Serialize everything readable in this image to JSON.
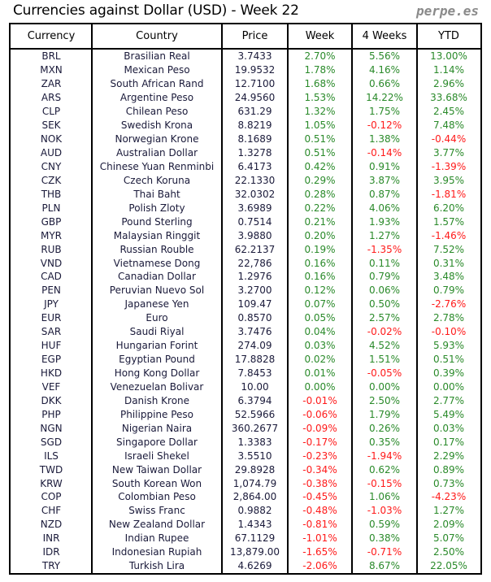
{
  "title": "Currencies against Dollar (USD) - Week 22",
  "brand": "perpe.es",
  "colors": {
    "positive": "#2a8a2a",
    "negative": "#ff1a1a"
  },
  "headers": [
    "Currency",
    "Country",
    "Price",
    "Week",
    "4 Weeks",
    "YTD"
  ],
  "rows": [
    [
      "BRL",
      "Brasilian Real",
      "3.7433",
      "2.70%",
      "5.56%",
      "13.00%"
    ],
    [
      "MXN",
      "Mexican Peso",
      "19.9532",
      "1.78%",
      "4.16%",
      "1.14%"
    ],
    [
      "ZAR",
      "South African Rand",
      "12.7100",
      "1.68%",
      "0.66%",
      "2.96%"
    ],
    [
      "ARS",
      "Argentine Peso",
      "24.9560",
      "1.53%",
      "14.22%",
      "33.68%"
    ],
    [
      "CLP",
      "Chilean Peso",
      "631.29",
      "1.32%",
      "1.75%",
      "2.45%"
    ],
    [
      "SEK",
      "Swedish Krona",
      "8.8219",
      "1.05%",
      "-0.12%",
      "7.48%"
    ],
    [
      "NOK",
      "Norwegian Krone",
      "8.1689",
      "0.51%",
      "1.38%",
      "-0.44%"
    ],
    [
      "AUD",
      "Australian Dollar",
      "1.3278",
      "0.51%",
      "-0.14%",
      "3.77%"
    ],
    [
      "CNY",
      "Chinese Yuan Renminbi",
      "6.4173",
      "0.42%",
      "0.91%",
      "-1.39%"
    ],
    [
      "CZK",
      "Czech Koruna",
      "22.1330",
      "0.29%",
      "3.87%",
      "3.95%"
    ],
    [
      "THB",
      "Thai Baht",
      "32.0302",
      "0.28%",
      "0.87%",
      "-1.81%"
    ],
    [
      "PLN",
      "Polish Zloty",
      "3.6989",
      "0.22%",
      "4.06%",
      "6.20%"
    ],
    [
      "GBP",
      "Pound Sterling",
      "0.7514",
      "0.21%",
      "1.93%",
      "1.57%"
    ],
    [
      "MYR",
      "Malaysian Ringgit",
      "3.9880",
      "0.20%",
      "1.27%",
      "-1.46%"
    ],
    [
      "RUB",
      "Russian Rouble",
      "62.2137",
      "0.19%",
      "-1.35%",
      "7.52%"
    ],
    [
      "VND",
      "Vietnamese Dong",
      "22,786",
      "0.16%",
      "0.11%",
      "0.31%"
    ],
    [
      "CAD",
      "Canadian Dollar",
      "1.2976",
      "0.16%",
      "0.79%",
      "3.48%"
    ],
    [
      "PEN",
      "Peruvian Nuevo Sol",
      "3.2700",
      "0.12%",
      "0.06%",
      "0.79%"
    ],
    [
      "JPY",
      "Japanese Yen",
      "109.47",
      "0.07%",
      "0.50%",
      "-2.76%"
    ],
    [
      "EUR",
      "Euro",
      "0.8570",
      "0.05%",
      "2.57%",
      "2.78%"
    ],
    [
      "SAR",
      "Saudi Riyal",
      "3.7476",
      "0.04%",
      "-0.02%",
      "-0.10%"
    ],
    [
      "HUF",
      "Hungarian Forint",
      "274.09",
      "0.03%",
      "4.52%",
      "5.93%"
    ],
    [
      "EGP",
      "Egyptian Pound",
      "17.8828",
      "0.02%",
      "1.51%",
      "0.51%"
    ],
    [
      "HKD",
      "Hong Kong Dollar",
      "7.8453",
      "0.01%",
      "-0.05%",
      "0.39%"
    ],
    [
      "VEF",
      "Venezuelan Bolivar",
      "10.00",
      "0.00%",
      "0.00%",
      "0.00%"
    ],
    [
      "DKK",
      "Danish Krone",
      "6.3794",
      "-0.01%",
      "2.50%",
      "2.77%"
    ],
    [
      "PHP",
      "Philippine Peso",
      "52.5966",
      "-0.06%",
      "1.79%",
      "5.49%"
    ],
    [
      "NGN",
      "Nigerian Naira",
      "360.2677",
      "-0.09%",
      "0.26%",
      "0.03%"
    ],
    [
      "SGD",
      "Singapore Dollar",
      "1.3383",
      "-0.17%",
      "0.35%",
      "0.17%"
    ],
    [
      "ILS",
      "Israeli Shekel",
      "3.5510",
      "-0.23%",
      "-1.94%",
      "2.29%"
    ],
    [
      "TWD",
      "New Taiwan Dollar",
      "29.8928",
      "-0.34%",
      "0.62%",
      "0.89%"
    ],
    [
      "KRW",
      "South Korean Won",
      "1,074.79",
      "-0.38%",
      "-0.15%",
      "0.73%"
    ],
    [
      "COP",
      "Colombian Peso",
      "2,864.00",
      "-0.45%",
      "1.06%",
      "-4.23%"
    ],
    [
      "CHF",
      "Swiss Franc",
      "0.9882",
      "-0.48%",
      "-1.03%",
      "1.27%"
    ],
    [
      "NZD",
      "New Zealand Dollar",
      "1.4343",
      "-0.81%",
      "0.59%",
      "2.09%"
    ],
    [
      "INR",
      "Indian Rupee",
      "67.1129",
      "-1.01%",
      "0.38%",
      "5.07%"
    ],
    [
      "IDR",
      "Indonesian Rupiah",
      "13,879.00",
      "-1.65%",
      "-0.71%",
      "2.50%"
    ],
    [
      "TRY",
      "Turkish Lira",
      "4.6269",
      "-2.06%",
      "8.67%",
      "22.05%"
    ]
  ]
}
